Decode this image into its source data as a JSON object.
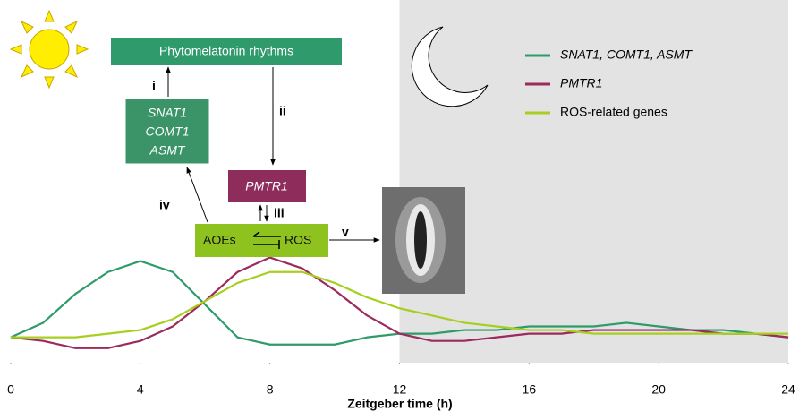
{
  "chart_data": {
    "type": "line",
    "x_label": "Zeitgeber time (h)",
    "x": [
      0,
      1,
      2,
      3,
      4,
      5,
      6,
      7,
      8,
      9,
      10,
      11,
      12,
      13,
      14,
      15,
      16,
      17,
      18,
      19,
      20,
      21,
      22,
      23,
      24
    ],
    "xlim": [
      0,
      24
    ],
    "xticks": [
      0,
      4,
      8,
      12,
      16,
      20,
      24
    ],
    "ylim": [
      0,
      1
    ],
    "night_shading": [
      12,
      24
    ],
    "series": [
      {
        "name": "SNAT1, COMT1, ASMT",
        "color": "#2f9a6b",
        "values": [
          0.07,
          0.11,
          0.19,
          0.25,
          0.28,
          0.25,
          0.16,
          0.07,
          0.05,
          0.05,
          0.05,
          0.07,
          0.08,
          0.08,
          0.09,
          0.09,
          0.1,
          0.1,
          0.1,
          0.11,
          0.1,
          0.09,
          0.09,
          0.08,
          0.07
        ]
      },
      {
        "name": "PMTR1",
        "color": "#9b2a5e",
        "values": [
          0.07,
          0.06,
          0.04,
          0.04,
          0.06,
          0.1,
          0.17,
          0.25,
          0.29,
          0.26,
          0.2,
          0.13,
          0.08,
          0.06,
          0.06,
          0.07,
          0.08,
          0.08,
          0.09,
          0.09,
          0.09,
          0.09,
          0.08,
          0.08,
          0.07
        ]
      },
      {
        "name": "ROS-related genes",
        "color": "#a6cf1f",
        "values": [
          0.07,
          0.07,
          0.07,
          0.08,
          0.09,
          0.12,
          0.17,
          0.22,
          0.25,
          0.25,
          0.22,
          0.18,
          0.15,
          0.13,
          0.11,
          0.1,
          0.09,
          0.09,
          0.08,
          0.08,
          0.08,
          0.08,
          0.08,
          0.08,
          0.08
        ]
      }
    ],
    "diagram": {
      "rhythms_box": "Phytomelatonin rhythms",
      "genes_box": [
        "SNAT1",
        "COMT1",
        "ASMT"
      ],
      "receptor_box": "PMTR1",
      "aoes": "AOEs",
      "ros": "ROS",
      "arrow_labels": [
        "i",
        "ii",
        "iii",
        "iv",
        "v"
      ]
    }
  }
}
